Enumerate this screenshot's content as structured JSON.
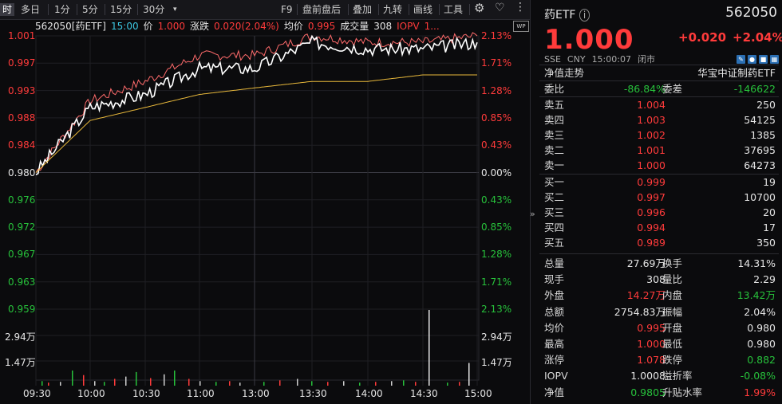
{
  "toolbar": {
    "items": [
      "时",
      "多日",
      "1分",
      "5分",
      "15分",
      "30分",
      "▾"
    ],
    "right_items": [
      "F9",
      "盘前盘后",
      "叠加",
      "九转",
      "画线",
      "工具"
    ],
    "gear_icon": "gear-icon",
    "heart_icon": "heart-icon",
    "more_icon": "more-icon"
  },
  "info": {
    "name": "562050[药ETF]",
    "time": "15:00",
    "price_label": "价",
    "price": "1.000",
    "change_label": "涨跌",
    "change": "0.020(2.04%)",
    "avg_label": "均价",
    "avg": "0.995",
    "vol_label": "成交量",
    "vol": "308",
    "iopv_label": "IOPV",
    "iopv": "1..."
  },
  "left_price_labels": [
    {
      "text": "1.001",
      "color": "red"
    },
    {
      "text": "0.997",
      "color": "red"
    },
    {
      "text": "0.993",
      "color": "red"
    },
    {
      "text": "0.988",
      "color": "red"
    },
    {
      "text": "0.984",
      "color": "red"
    },
    {
      "text": "0.980",
      "color": "white"
    },
    {
      "text": "0.976",
      "color": "green"
    },
    {
      "text": "0.972",
      "color": "green"
    },
    {
      "text": "0.967",
      "color": "green"
    },
    {
      "text": "0.963",
      "color": "green"
    },
    {
      "text": "0.959",
      "color": "green"
    }
  ],
  "right_pct_labels": [
    {
      "text": "2.13%",
      "color": "red"
    },
    {
      "text": "1.71%",
      "color": "red"
    },
    {
      "text": "1.28%",
      "color": "red"
    },
    {
      "text": "0.85%",
      "color": "red"
    },
    {
      "text": "0.43%",
      "color": "red"
    },
    {
      "text": "0.00%",
      "color": "white"
    },
    {
      "text": "0.43%",
      "color": "green"
    },
    {
      "text": "0.85%",
      "color": "green"
    },
    {
      "text": "1.28%",
      "color": "green"
    },
    {
      "text": "1.71%",
      "color": "green"
    },
    {
      "text": "2.13%",
      "color": "green"
    }
  ],
  "vol_labels": [
    "2.94万",
    "1.47万"
  ],
  "time_labels": [
    "09:30",
    "10:00",
    "10:30",
    "11:00",
    "13:00",
    "13:30",
    "14:00",
    "14:30",
    "15:00"
  ],
  "chart_data": {
    "type": "line",
    "x": [
      "09:30",
      "10:00",
      "10:30",
      "11:00",
      "13:00",
      "13:30",
      "14:00",
      "14:30",
      "15:00"
    ],
    "ylim": [
      0.959,
      1.001
    ],
    "series": [
      {
        "values": [
          0.98,
          0.99,
          0.992,
          0.996,
          0.996,
          1.0,
          0.999,
          0.999,
          1.0
        ]
      },
      {
        "values": [
          0.98,
          0.991,
          0.994,
          0.998,
          0.998,
          1.001,
          1.0,
          1.0,
          1.001
        ]
      },
      {
        "values": [
          0.98,
          0.988,
          0.99,
          0.992,
          0.993,
          0.994,
          0.994,
          0.995,
          0.995
        ]
      }
    ],
    "volume_ylim": [
      0,
      44100
    ],
    "volume_ticks": [
      "2.94万",
      "1.47万"
    ]
  },
  "panel": {
    "title": "药ETF",
    "code": "562050",
    "price": "1.000",
    "change": "+0.020",
    "pct": "+2.04%",
    "meta": [
      "SSE",
      "CNY",
      "15:00:07",
      "闭市"
    ],
    "tab_left": "净值走势",
    "tab_right": "华宝中证制药ETF",
    "weibi_label": "委比",
    "weibi": "-86.84%",
    "weicha_label": "委差",
    "weicha": "-146622",
    "asks": [
      {
        "label": "卖五",
        "price": "1.004",
        "qty": "250"
      },
      {
        "label": "卖四",
        "price": "1.003",
        "qty": "54125"
      },
      {
        "label": "卖三",
        "price": "1.002",
        "qty": "1385"
      },
      {
        "label": "卖二",
        "price": "1.001",
        "qty": "37695"
      },
      {
        "label": "卖一",
        "price": "1.000",
        "qty": "64273"
      }
    ],
    "bids": [
      {
        "label": "买一",
        "price": "0.999",
        "qty": "19"
      },
      {
        "label": "买二",
        "price": "0.997",
        "qty": "10700"
      },
      {
        "label": "买三",
        "price": "0.996",
        "qty": "20"
      },
      {
        "label": "买四",
        "price": "0.994",
        "qty": "17"
      },
      {
        "label": "买五",
        "price": "0.989",
        "qty": "350"
      }
    ],
    "stats": [
      {
        "k": "总量",
        "v": "27.69万",
        "vc": "white",
        "k2": "换手",
        "v2": "14.31%",
        "v2c": "white"
      },
      {
        "k": "现手",
        "v": "308",
        "vc": "white",
        "k2": "量比",
        "v2": "2.29",
        "v2c": "white"
      },
      {
        "k": "外盘",
        "v": "14.27万",
        "vc": "red",
        "k2": "内盘",
        "v2": "13.42万",
        "v2c": "green"
      },
      {
        "k": "总额",
        "v": "2754.83万",
        "vc": "white",
        "k2": "振幅",
        "v2": "2.04%",
        "v2c": "white"
      },
      {
        "k": "均价",
        "v": "0.995",
        "vc": "red",
        "k2": "开盘",
        "v2": "0.980",
        "v2c": "white"
      },
      {
        "k": "最高",
        "v": "1.000",
        "vc": "red",
        "k2": "最低",
        "v2": "0.980",
        "v2c": "white"
      },
      {
        "k": "涨停",
        "v": "1.078",
        "vc": "red",
        "k2": "跌停",
        "v2": "0.882",
        "v2c": "green"
      },
      {
        "k": "IOPV",
        "v": "1.0008",
        "vc": "white",
        "k2": "溢折率",
        "v2": "-0.08%",
        "v2c": "green"
      },
      {
        "k": "净值",
        "v": "0.9805",
        "vc": "green",
        "k2": "升贴水率",
        "v2": "1.99%",
        "v2c": "red"
      }
    ]
  },
  "colors": {
    "up": "#ff3b3b",
    "down": "#27c13b",
    "avg": "#e9b93b",
    "price_line": "#ffffff",
    "high_line": "#ff6b6b"
  }
}
